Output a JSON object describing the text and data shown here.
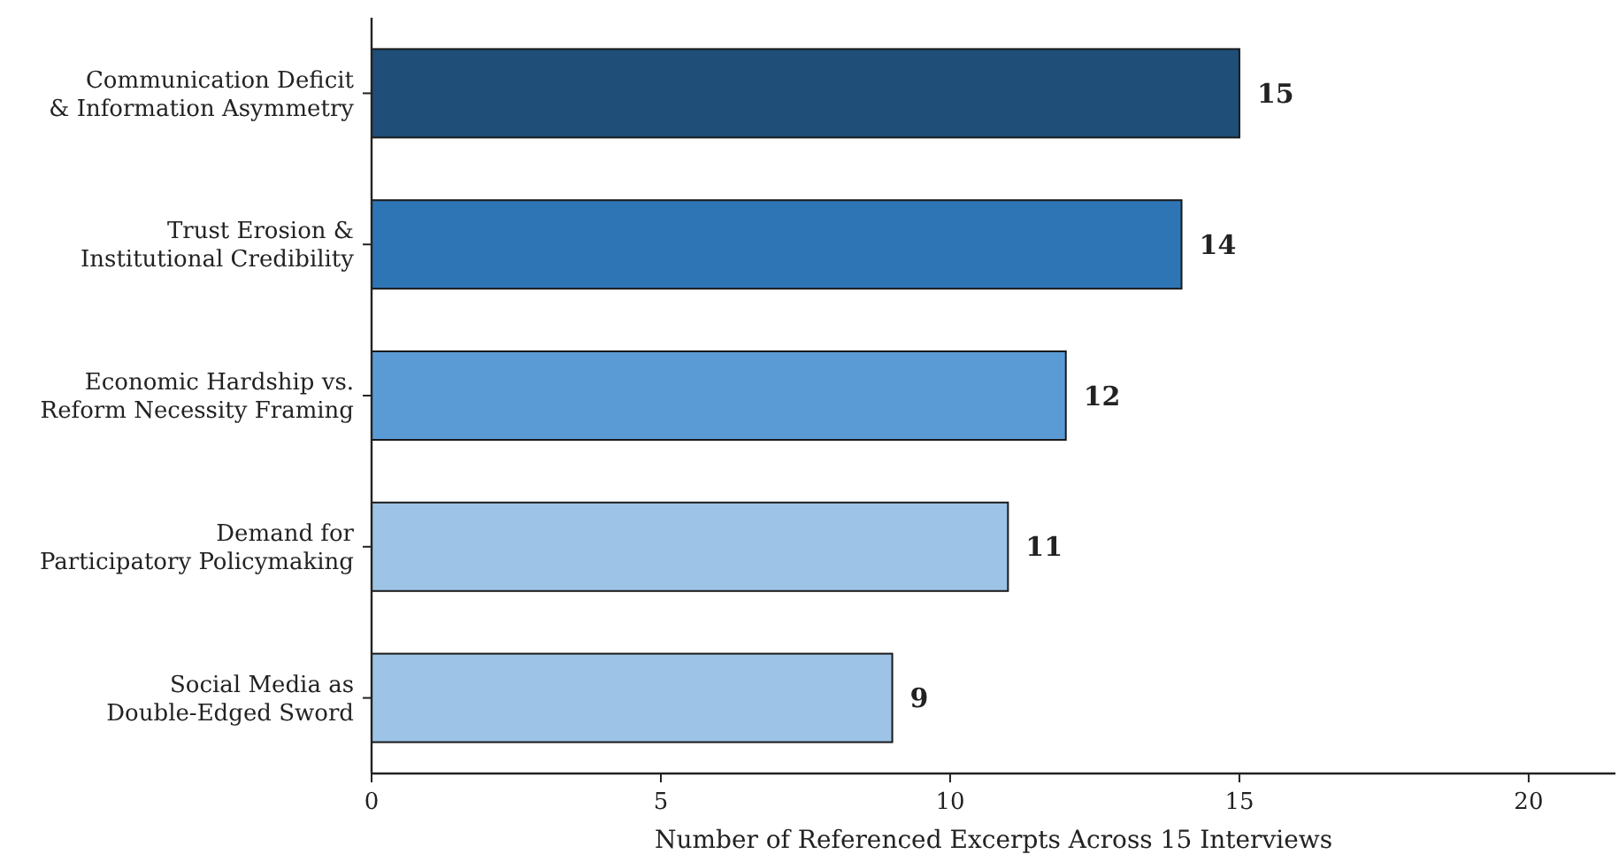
{
  "chart_data": {
    "type": "bar",
    "orientation": "horizontal",
    "xlabel": "Number of Referenced Excerpts Across 15 Interviews",
    "categories": [
      "Communication Deficit\n& Information Asymmetry",
      "Trust Erosion &\nInstitutional Credibility",
      "Economic Hardship vs.\nReform Necessity Framing",
      "Demand for\nParticipatory Policymaking",
      "Social Media as\nDouble-Edged Sword"
    ],
    "values": [
      15,
      14,
      12,
      11,
      9
    ],
    "colors": [
      "#1f4e79",
      "#2e75b6",
      "#5b9bd5",
      "#9dc3e6",
      "#9dc3e6"
    ],
    "xlim": [
      0,
      21.5
    ],
    "xticks": [
      0,
      5,
      10,
      15,
      20
    ],
    "data_labels": true
  }
}
